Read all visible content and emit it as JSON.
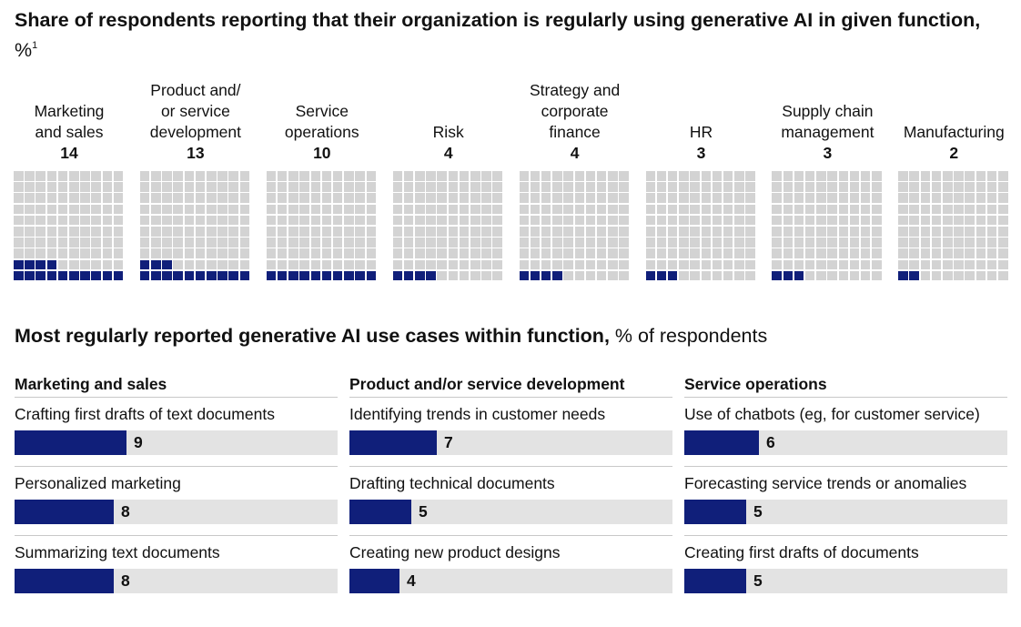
{
  "title": {
    "main": "Share of respondents reporting that their organization is regularly using generative AI in given function,",
    "unit": "%",
    "footnote": "1"
  },
  "chart_data": [
    {
      "type": "waffle",
      "grid": {
        "rows": 10,
        "cols": 10
      },
      "categories": [
        "Marketing\nand sales",
        "Product and/\nor service\ndevelopment",
        "Service\noperations",
        "Risk",
        "Strategy and\ncorporate\nfinance",
        "HR",
        "Supply chain\nmanagement",
        "Manufacturing"
      ],
      "values": [
        14,
        13,
        10,
        4,
        4,
        3,
        3,
        2
      ],
      "colors": {
        "filled": "#101f7a",
        "empty": "#d3d3d3"
      }
    },
    {
      "type": "bar",
      "orientation": "horizontal",
      "title": "Most regularly reported generative AI use cases within function,",
      "unit": "% of respondents",
      "xlim": [
        0,
        100
      ],
      "groups": [
        {
          "name": "Marketing and sales",
          "categories": [
            "Crafting first drafts of text documents",
            "Personalized marketing",
            "Summarizing text documents"
          ],
          "values": [
            9,
            8,
            8
          ]
        },
        {
          "name": "Product and/or service development",
          "categories": [
            "Identifying trends in customer needs",
            "Drafting technical documents",
            "Creating new product designs"
          ],
          "values": [
            7,
            5,
            4
          ]
        },
        {
          "name": "Service operations",
          "categories": [
            "Use of chatbots (eg, for customer service)",
            "Forecasting service trends or anomalies",
            "Creating first drafts of documents"
          ],
          "values": [
            6,
            5,
            5
          ]
        }
      ],
      "colors": {
        "bar": "#101f7a",
        "track": "#e3e3e3"
      }
    }
  ]
}
